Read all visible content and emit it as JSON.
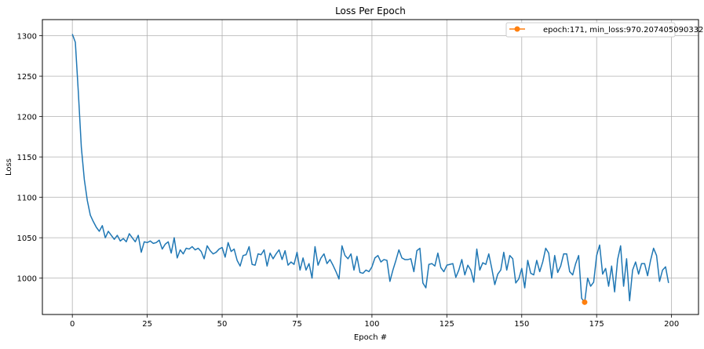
{
  "chart_data": {
    "type": "line",
    "title": "Loss Per Epoch",
    "xlabel": "Epoch #",
    "ylabel": "Loss",
    "xlim": [
      -10,
      209
    ],
    "ylim": [
      955,
      1320
    ],
    "x_ticks": [
      0,
      25,
      50,
      75,
      100,
      125,
      150,
      175,
      200
    ],
    "y_ticks": [
      1000,
      1050,
      1100,
      1150,
      1200,
      1250,
      1300
    ],
    "grid": true,
    "legend_position": "top-right",
    "series": [
      {
        "color": "#1f77b4",
        "x_start": 0,
        "x_step": 1,
        "values": [
          1302,
          1292,
          1230,
          1162,
          1122,
          1096,
          1078,
          1070,
          1063,
          1058,
          1065,
          1050,
          1058,
          1053,
          1048,
          1053,
          1046,
          1049,
          1045,
          1055,
          1050,
          1045,
          1053,
          1032,
          1045,
          1044,
          1046,
          1043,
          1044,
          1047,
          1036,
          1042,
          1045,
          1031,
          1050,
          1025,
          1035,
          1030,
          1037,
          1036,
          1039,
          1035,
          1037,
          1033,
          1024,
          1040,
          1034,
          1030,
          1032,
          1036,
          1038,
          1026,
          1044,
          1033,
          1036,
          1022,
          1015,
          1028,
          1029,
          1039,
          1017,
          1016,
          1030,
          1029,
          1035,
          1015,
          1031,
          1024,
          1030,
          1035,
          1023,
          1034,
          1016,
          1020,
          1017,
          1032,
          1010,
          1025,
          1010,
          1018,
          1000,
          1039,
          1016,
          1025,
          1030,
          1018,
          1023,
          1016,
          1008,
          999,
          1040,
          1028,
          1024,
          1030,
          1010,
          1027,
          1007,
          1006,
          1010,
          1008,
          1014,
          1025,
          1028,
          1020,
          1023,
          1022,
          996,
          1010,
          1022,
          1035,
          1025,
          1023,
          1023,
          1024,
          1008,
          1034,
          1037,
          994,
          988,
          1017,
          1018,
          1015,
          1031,
          1013,
          1008,
          1016,
          1017,
          1018,
          1001,
          1010,
          1023,
          1004,
          1016,
          1010,
          995,
          1036,
          1010,
          1019,
          1017,
          1030,
          1012,
          992,
          1005,
          1010,
          1032,
          1010,
          1028,
          1024,
          994,
          999,
          1012,
          988,
          1022,
          1006,
          1004,
          1022,
          1008,
          1020,
          1037,
          1031,
          1000,
          1028,
          1007,
          1015,
          1030,
          1030,
          1008,
          1004,
          1018,
          1028,
          975,
          970,
          1000,
          990,
          995,
          1028,
          1041,
          1005,
          1012,
          990,
          1015,
          983,
          1023,
          1040,
          990,
          1024,
          972,
          1010,
          1020,
          1005,
          1018,
          1018,
          1003,
          1022,
          1037,
          1028,
          996,
          1010,
          1014,
          994
        ]
      }
    ],
    "marker": {
      "x": 171,
      "y": 970.207405090332,
      "color": "#ff7f0e",
      "legend_label": "epoch:171, min_loss:970.207405090332"
    }
  }
}
